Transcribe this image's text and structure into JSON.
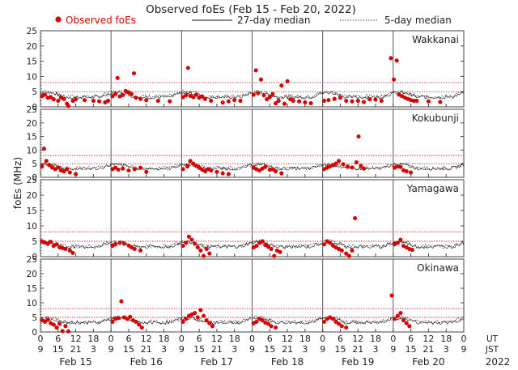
{
  "chart_data": {
    "type": "scatter",
    "title": "Observed foEs (Feb 15 - Feb 20, 2022)",
    "legend": {
      "observed": "Observed foEs",
      "median27": "27-day median",
      "median5": "5-day median",
      "placement": "top"
    },
    "ylabel": "foEs (MHz)",
    "ylim": [
      0,
      25
    ],
    "yticks": [
      0,
      5,
      10,
      15,
      20,
      25
    ],
    "xlim_hours": [
      0,
      144
    ],
    "ut_tick_hours": [
      0,
      6,
      12,
      18,
      24,
      30,
      36,
      42,
      48,
      54,
      60,
      66,
      72,
      78,
      84,
      90,
      96,
      102,
      108,
      114,
      120,
      126,
      132,
      138,
      144
    ],
    "ut_tick_labels": [
      "0",
      "6",
      "12",
      "18",
      "0",
      "6",
      "12",
      "18",
      "0",
      "6",
      "12",
      "18",
      "0",
      "6",
      "12",
      "18",
      "0",
      "6",
      "12",
      "18",
      "0",
      "6",
      "12",
      "18",
      "0"
    ],
    "jst_tick_labels": [
      "9",
      "15",
      "21",
      "3",
      "9",
      "15",
      "21",
      "3",
      "9",
      "15",
      "21",
      "3",
      "9",
      "15",
      "21",
      "3",
      "9",
      "15",
      "21",
      "3",
      "9",
      "15",
      "21",
      "3",
      "9"
    ],
    "ut_label": "UT",
    "jst_label": "JST",
    "days": [
      "Feb 15",
      "Feb 16",
      "Feb 17",
      "Feb 18",
      "Feb 19",
      "Feb 20"
    ],
    "year": "2022",
    "colors": {
      "observed": "#dd0000",
      "median_line": "#111111",
      "threshold": "#cc3333",
      "day_line": "#555555"
    },
    "panels": [
      {
        "station": "Wakkanai",
        "ylim": [
          0,
          25
        ],
        "threshold_lines": [
          5,
          8
        ],
        "median27_baseline": 3.2,
        "median5_baseline": 3.4,
        "observed": [
          [
            0.5,
            3.5
          ],
          [
            1.5,
            4.0
          ],
          [
            2.5,
            3.0
          ],
          [
            3.5,
            3.2
          ],
          [
            4.5,
            2.5
          ],
          [
            6,
            2.0
          ],
          [
            7,
            3.0
          ],
          [
            8,
            2.6
          ],
          [
            9,
            1.0
          ],
          [
            9.5,
            0.3
          ],
          [
            11,
            2.0
          ],
          [
            12,
            2.5
          ],
          [
            15,
            2.2
          ],
          [
            18,
            2.0
          ],
          [
            20,
            1.8
          ],
          [
            22,
            1.5
          ],
          [
            23,
            2.0
          ],
          [
            24.5,
            3.5
          ],
          [
            25.5,
            4.2
          ],
          [
            26.2,
            9.5
          ],
          [
            27,
            3.4
          ],
          [
            28,
            3.9
          ],
          [
            29,
            5.2
          ],
          [
            30,
            4.8
          ],
          [
            31,
            4.2
          ],
          [
            31.8,
            11.0
          ],
          [
            32.5,
            3.0
          ],
          [
            34,
            2.6
          ],
          [
            36,
            2.2
          ],
          [
            40,
            2.0
          ],
          [
            44,
            1.8
          ],
          [
            48.5,
            3.2
          ],
          [
            49.5,
            3.8
          ],
          [
            50.2,
            12.8
          ],
          [
            51,
            3.6
          ],
          [
            52,
            3.2
          ],
          [
            53,
            4.0
          ],
          [
            54,
            3.0
          ],
          [
            55,
            3.4
          ],
          [
            56,
            2.6
          ],
          [
            58,
            2.0
          ],
          [
            62,
            1.4
          ],
          [
            64,
            1.8
          ],
          [
            66,
            2.2
          ],
          [
            68,
            2.0
          ],
          [
            72.5,
            4.0
          ],
          [
            73.3,
            12.0
          ],
          [
            74,
            4.5
          ],
          [
            75,
            9.0
          ],
          [
            76,
            3.8
          ],
          [
            77,
            2.5
          ],
          [
            78,
            3.2
          ],
          [
            79,
            4.2
          ],
          [
            80,
            1.2
          ],
          [
            81,
            2.0
          ],
          [
            82,
            7.0
          ],
          [
            83,
            1.0
          ],
          [
            84,
            8.4
          ],
          [
            85,
            2.5
          ],
          [
            86,
            2.0
          ],
          [
            88,
            1.8
          ],
          [
            90,
            1.5
          ],
          [
            92,
            1.2
          ],
          [
            96.5,
            2.0
          ],
          [
            98,
            2.2
          ],
          [
            100,
            2.6
          ],
          [
            102,
            3.0
          ],
          [
            104,
            2.0
          ],
          [
            106,
            1.8
          ],
          [
            108,
            2.0
          ],
          [
            110,
            1.6
          ],
          [
            112,
            2.5
          ],
          [
            114,
            2.4
          ],
          [
            116,
            2.0
          ],
          [
            119.2,
            16.0
          ],
          [
            120.2,
            9.0
          ],
          [
            121.2,
            15.2
          ],
          [
            122,
            4.0
          ],
          [
            123,
            3.5
          ],
          [
            124,
            3.0
          ],
          [
            125,
            2.6
          ],
          [
            126,
            2.2
          ],
          [
            127,
            2.0
          ],
          [
            128,
            2.0
          ],
          [
            132,
            1.8
          ],
          [
            136,
            1.6
          ]
        ]
      },
      {
        "station": "Kokubunji",
        "ylim": [
          0,
          25
        ],
        "threshold_lines": [
          5,
          8
        ],
        "median27_baseline": 3.2,
        "median5_baseline": 3.4,
        "observed": [
          [
            0.5,
            4.0
          ],
          [
            1.2,
            10.5
          ],
          [
            2,
            6.0
          ],
          [
            3,
            4.5
          ],
          [
            4,
            3.6
          ],
          [
            5,
            3.0
          ],
          [
            6,
            3.6
          ],
          [
            7,
            2.5
          ],
          [
            8,
            2.2
          ],
          [
            9,
            3.0
          ],
          [
            10,
            1.8
          ],
          [
            12,
            1.2
          ],
          [
            24.5,
            3.0
          ],
          [
            25.5,
            3.5
          ],
          [
            26.5,
            2.8
          ],
          [
            28,
            3.2
          ],
          [
            30,
            2.5
          ],
          [
            32,
            3.0
          ],
          [
            34,
            3.5
          ],
          [
            36,
            2.0
          ],
          [
            48.5,
            3.0
          ],
          [
            50,
            4.0
          ],
          [
            51,
            6.0
          ],
          [
            52,
            5.0
          ],
          [
            53,
            4.2
          ],
          [
            54,
            3.5
          ],
          [
            55,
            2.8
          ],
          [
            56,
            2.2
          ],
          [
            57,
            3.0
          ],
          [
            58,
            2.5
          ],
          [
            60,
            2.0
          ],
          [
            62,
            1.5
          ],
          [
            64,
            1.2
          ],
          [
            72.5,
            3.5
          ],
          [
            73.5,
            3.0
          ],
          [
            74.5,
            2.5
          ],
          [
            75.5,
            3.2
          ],
          [
            76.5,
            3.8
          ],
          [
            78,
            2.8
          ],
          [
            79,
            3.0
          ],
          [
            80,
            2.2
          ],
          [
            82,
            1.5
          ],
          [
            96.5,
            3.0
          ],
          [
            97.5,
            3.5
          ],
          [
            98.5,
            4.0
          ],
          [
            99.5,
            4.5
          ],
          [
            100.5,
            5.0
          ],
          [
            101.5,
            6.0
          ],
          [
            103,
            4.8
          ],
          [
            104.5,
            4.0
          ],
          [
            106,
            3.6
          ],
          [
            107.5,
            5.5
          ],
          [
            108.2,
            15.0
          ],
          [
            109,
            4.2
          ],
          [
            110,
            3.2
          ],
          [
            120.5,
            3.5
          ],
          [
            121.5,
            4.0
          ],
          [
            122.5,
            3.8
          ],
          [
            123.5,
            2.6
          ],
          [
            124.5,
            2.2
          ],
          [
            126,
            1.8
          ]
        ]
      },
      {
        "station": "Yamagawa",
        "ylim": [
          0,
          25
        ],
        "threshold_lines": [
          5,
          8
        ],
        "median27_baseline": 3.2,
        "median5_baseline": 3.4,
        "observed": [
          [
            0.5,
            5.0
          ],
          [
            1.5,
            4.6
          ],
          [
            2.5,
            4.2
          ],
          [
            3.5,
            4.8
          ],
          [
            4.5,
            3.5
          ],
          [
            5.5,
            4.0
          ],
          [
            6.5,
            3.0
          ],
          [
            7.5,
            2.8
          ],
          [
            8.5,
            2.5
          ],
          [
            10,
            2.0
          ],
          [
            11,
            1.2
          ],
          [
            24.5,
            3.5
          ],
          [
            25.5,
            4.0
          ],
          [
            27,
            4.5
          ],
          [
            28.5,
            4.2
          ],
          [
            30,
            3.6
          ],
          [
            31,
            3.0
          ],
          [
            32,
            2.5
          ],
          [
            34,
            2.0
          ],
          [
            48.5,
            3.5
          ],
          [
            49.5,
            4.5
          ],
          [
            50.5,
            6.5
          ],
          [
            51.5,
            5.5
          ],
          [
            52.5,
            4.2
          ],
          [
            53.5,
            3.0
          ],
          [
            54.5,
            2.0
          ],
          [
            55.5,
            0.2
          ],
          [
            56.5,
            2.5
          ],
          [
            57.5,
            1.0
          ],
          [
            72.5,
            3.0
          ],
          [
            73.5,
            3.5
          ],
          [
            74.5,
            4.5
          ],
          [
            75.5,
            5.0
          ],
          [
            76.5,
            3.8
          ],
          [
            77.5,
            3.2
          ],
          [
            78.5,
            2.5
          ],
          [
            79.5,
            0.2
          ],
          [
            80.5,
            2.0
          ],
          [
            81.5,
            1.5
          ],
          [
            96.5,
            4.0
          ],
          [
            97.5,
            5.0
          ],
          [
            98.5,
            4.5
          ],
          [
            99.5,
            3.6
          ],
          [
            100.5,
            3.0
          ],
          [
            101.5,
            2.5
          ],
          [
            102.5,
            2.0
          ],
          [
            104,
            1.0
          ],
          [
            105,
            0.2
          ],
          [
            106,
            2.0
          ],
          [
            107,
            12.5
          ],
          [
            120.5,
            4.0
          ],
          [
            121.5,
            4.5
          ],
          [
            122.5,
            5.5
          ],
          [
            123.5,
            3.5
          ],
          [
            124.5,
            3.0
          ],
          [
            125.5,
            2.5
          ],
          [
            126.5,
            2.2
          ]
        ]
      },
      {
        "station": "Okinawa",
        "ylim": [
          0,
          25
        ],
        "threshold_lines": [
          5,
          8
        ],
        "median27_baseline": 3.2,
        "median5_baseline": 3.4,
        "observed": [
          [
            0.5,
            4.0
          ],
          [
            1.5,
            3.5
          ],
          [
            2.5,
            4.2
          ],
          [
            3.5,
            3.0
          ],
          [
            4.5,
            2.5
          ],
          [
            5.5,
            1.5
          ],
          [
            6.5,
            2.8
          ],
          [
            7.5,
            0.3
          ],
          [
            8.5,
            2.0
          ],
          [
            9.5,
            0.2
          ],
          [
            24.5,
            3.5
          ],
          [
            25.5,
            4.5
          ],
          [
            26.5,
            4.8
          ],
          [
            27.5,
            10.5
          ],
          [
            28.5,
            5.0
          ],
          [
            29.5,
            4.5
          ],
          [
            30.5,
            5.2
          ],
          [
            31.5,
            4.0
          ],
          [
            32.5,
            3.5
          ],
          [
            33.5,
            2.5
          ],
          [
            34.5,
            1.5
          ],
          [
            48.5,
            3.5
          ],
          [
            49.5,
            4.5
          ],
          [
            50.5,
            5.5
          ],
          [
            51.5,
            6.0
          ],
          [
            52.5,
            6.5
          ],
          [
            53.5,
            5.0
          ],
          [
            54.5,
            7.5
          ],
          [
            55.5,
            5.5
          ],
          [
            56.5,
            4.0
          ],
          [
            57.5,
            3.0
          ],
          [
            58.5,
            2.0
          ],
          [
            72.5,
            3.0
          ],
          [
            73.5,
            3.5
          ],
          [
            74.5,
            4.5
          ],
          [
            75.5,
            4.0
          ],
          [
            76.5,
            3.2
          ],
          [
            77.5,
            2.8
          ],
          [
            78.5,
            2.0
          ],
          [
            80,
            1.5
          ],
          [
            96.5,
            3.5
          ],
          [
            97.5,
            4.5
          ],
          [
            98.5,
            5.0
          ],
          [
            99.5,
            4.5
          ],
          [
            100.5,
            3.5
          ],
          [
            101.5,
            2.8
          ],
          [
            102.5,
            2.0
          ],
          [
            104,
            1.5
          ],
          [
            119.5,
            12.5
          ],
          [
            120.5,
            4.5
          ],
          [
            121.5,
            5.5
          ],
          [
            122.5,
            6.5
          ],
          [
            123.5,
            4.0
          ],
          [
            124.5,
            3.0
          ],
          [
            125.5,
            2.0
          ]
        ]
      }
    ]
  }
}
